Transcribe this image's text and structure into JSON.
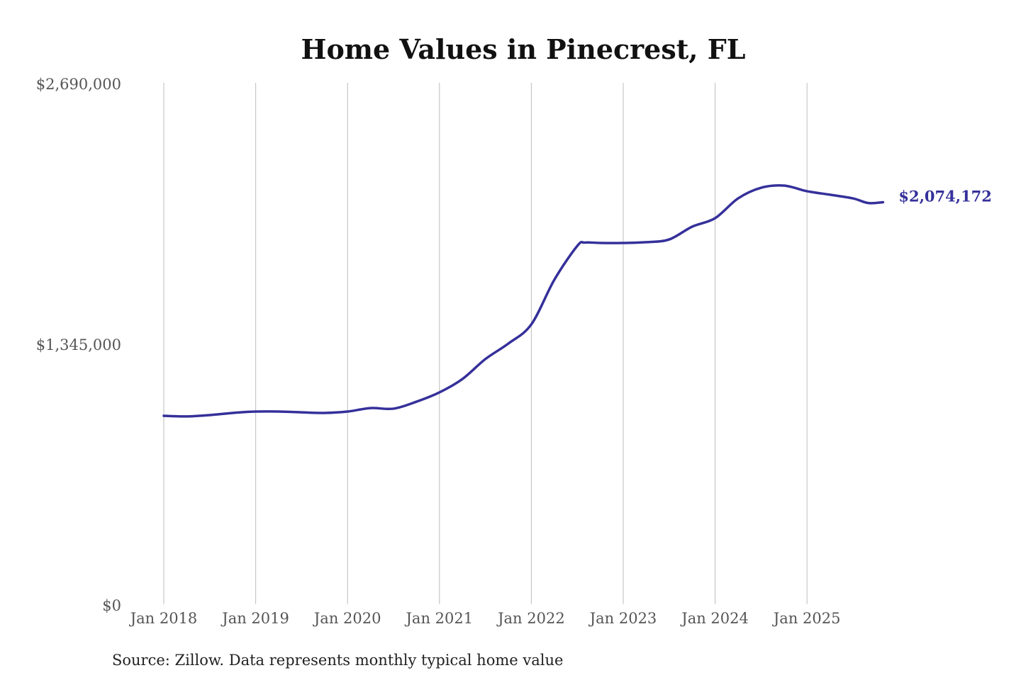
{
  "chart_data": {
    "type": "line",
    "title": "Home Values in Pinecrest, FL",
    "xlabel": "",
    "ylabel": "",
    "ylim": [
      0,
      2690000
    ],
    "y_ticks": [
      "$2,690,000",
      "$1,345,000",
      "$0"
    ],
    "y_tick_values": [
      2690000,
      1345000,
      0
    ],
    "x_ticks": [
      "Jan 2018",
      "Jan 2019",
      "Jan 2020",
      "Jan 2021",
      "Jan 2022",
      "Jan 2023",
      "Jan 2024",
      "Jan 2025"
    ],
    "x_tick_dates": [
      "2018-01",
      "2019-01",
      "2020-01",
      "2021-01",
      "2022-01",
      "2023-01",
      "2024-01",
      "2025-01"
    ],
    "grid": "vertical",
    "line_color": "#35309a",
    "end_label": "$2,074,172",
    "series": [
      {
        "x": [
          "2018-01",
          "2018-04",
          "2018-07",
          "2018-10",
          "2019-01",
          "2019-04",
          "2019-07",
          "2019-10",
          "2020-01",
          "2020-04",
          "2020-07",
          "2020-10",
          "2021-01",
          "2021-04",
          "2021-07",
          "2021-10",
          "2022-01",
          "2022-04",
          "2022-07",
          "2022-08",
          "2022-10",
          "2023-01",
          "2023-04",
          "2023-07",
          "2023-10",
          "2024-01",
          "2024-04",
          "2024-07",
          "2024-10",
          "2025-01",
          "2025-04",
          "2025-07",
          "2025-09",
          "2025-10"
        ],
        "values": [
          972000,
          969000,
          976000,
          987000,
          994000,
          994000,
          990000,
          987000,
          994000,
          1012000,
          1009000,
          1045000,
          1093000,
          1162000,
          1265000,
          1345000,
          1444000,
          1674000,
          1849000,
          1866000,
          1864000,
          1864000,
          1868000,
          1882000,
          1948000,
          1992000,
          2094000,
          2149000,
          2160000,
          2131000,
          2113000,
          2094000,
          2070000,
          2074172
        ]
      }
    ]
  },
  "source": "Source: Zillow. Data represents monthly typical home value"
}
